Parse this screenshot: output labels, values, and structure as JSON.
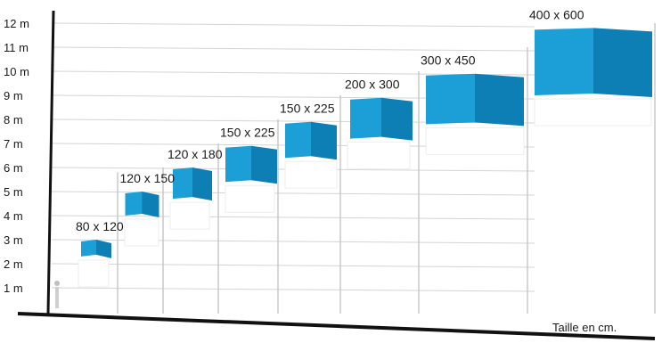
{
  "chart_data": {
    "type": "bar",
    "xlabel": "Taille en cm.",
    "ylim": [
      0,
      12
    ],
    "y_ticks": [
      "1 m",
      "2 m",
      "3 m",
      "4 m",
      "5 m",
      "6 m",
      "7 m",
      "8 m",
      "9 m",
      "10 m",
      "11 m",
      "12 m"
    ],
    "grid": true,
    "categories": [
      "80 x 120",
      "120 x 150",
      "120 x 180",
      "150 x 225",
      "150 x 225",
      "200 x 300",
      "300 x 450",
      "400 x 600"
    ],
    "series": [
      {
        "values": [
          {
            "flag_top": 3.0,
            "flag_bottom": 2.3,
            "pole": 5.8
          },
          {
            "flag_top": 5.0,
            "flag_bottom": 4.0,
            "pole": 6.0
          },
          {
            "flag_top": 6.0,
            "flag_bottom": 4.7,
            "pole": 7.0
          },
          {
            "flag_top": 6.9,
            "flag_bottom": 5.4,
            "pole": 8.0
          },
          {
            "flag_top": 7.9,
            "flag_bottom": 6.4,
            "pole": 9.0
          },
          {
            "flag_top": 8.9,
            "flag_bottom": 7.2,
            "pole": 10.0
          },
          {
            "flag_top": 9.9,
            "flag_bottom": 7.8,
            "pole": 11.0
          },
          {
            "flag_top": 11.8,
            "flag_bottom": 9.0,
            "pole": 12.0
          }
        ]
      }
    ],
    "colors": {
      "flag": "#1b9fd6",
      "flag_dark": "#0e7fb5",
      "pole": "#c8c8c8",
      "axis": "#111111",
      "grid": "#d4d4d4"
    }
  }
}
